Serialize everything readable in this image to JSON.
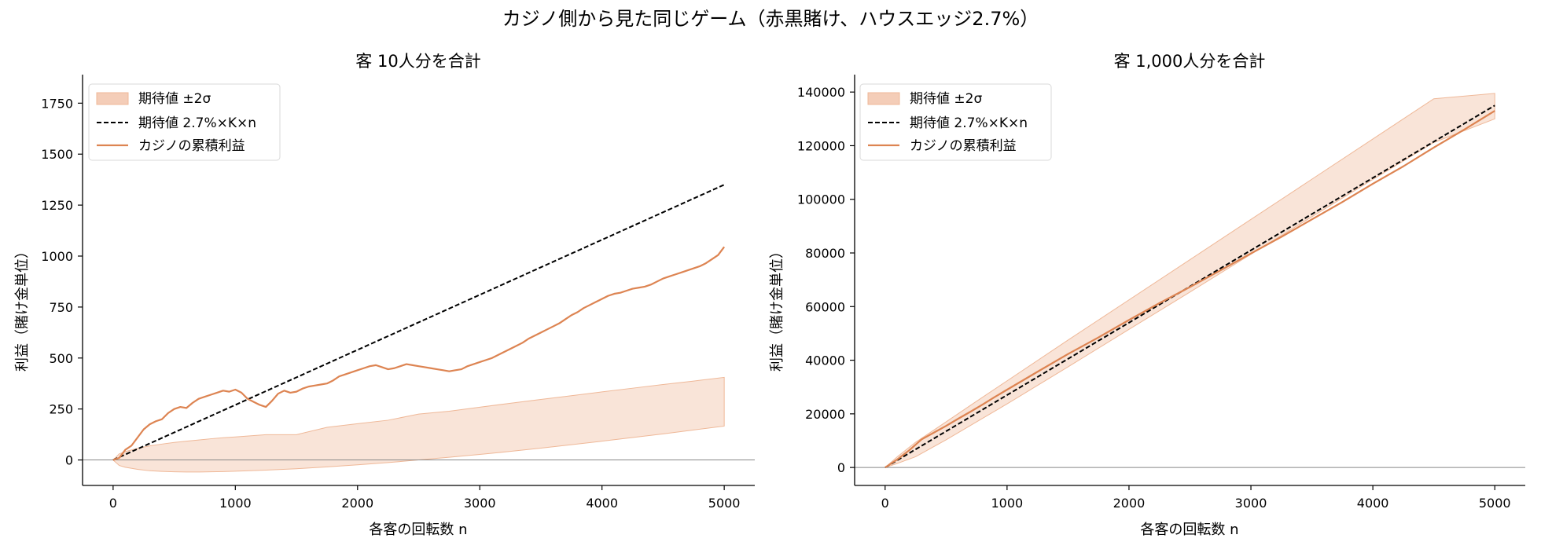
{
  "figure": {
    "suptitle": "カジノ側から見た同じゲーム（赤黒賭け、ハウスエッジ2.7%）"
  },
  "colors": {
    "band_fill": "#f4cdb8",
    "band_stroke": "#efb898",
    "profit_line": "#dd8452",
    "expected_line": "#000000",
    "zero_line": "#888888",
    "axis": "#000000",
    "legend_border": "#d9d9d9"
  },
  "chart_data": [
    {
      "type": "line",
      "title": "客 10人分を合計",
      "xlabel": "各客の回転数 n",
      "ylabel": "利益（賭け金単位）",
      "xlim": [
        -250,
        5250
      ],
      "ylim": [
        -125,
        1890
      ],
      "xticks": [
        0,
        1000,
        2000,
        3000,
        4000,
        5000
      ],
      "xtick_labels": [
        "0",
        "1000",
        "2000",
        "3000",
        "4000",
        "5000"
      ],
      "yticks": [
        0,
        250,
        500,
        750,
        1000,
        1250,
        1500,
        1750
      ],
      "ytick_labels": [
        "0",
        "250",
        "500",
        "750",
        "1000",
        "1250",
        "1500",
        "1750"
      ],
      "grid": false,
      "zero_line": true,
      "legend_position": "top-left",
      "legend": [
        "期待値 ±2σ",
        "期待値 2.7%×K×n",
        "カジノの累積利益"
      ],
      "band": {
        "name": "期待値 ±2σ",
        "x": [
          0,
          50,
          100,
          200,
          300,
          400,
          500,
          600,
          700,
          800,
          900,
          1000,
          1250,
          1500,
          1750,
          2000,
          2250,
          2500,
          2750,
          3000,
          3250,
          3500,
          3750,
          4000,
          4250,
          4500,
          4750,
          5000
        ],
        "lower": [
          0,
          -27,
          -36,
          -46,
          -53,
          -56,
          -58,
          -59,
          -59,
          -58,
          -57,
          -55,
          -50,
          -43,
          -34,
          -24,
          -13,
          0,
          13,
          27,
          42,
          58,
          75,
          92,
          110,
          128,
          147,
          166
        ],
        "upper": [
          0,
          30,
          41,
          57,
          69,
          78,
          86,
          92,
          98,
          104,
          109,
          113,
          124,
          124,
          160,
          178,
          195,
          225,
          239,
          259,
          278,
          297,
          315,
          334,
          352,
          370,
          387,
          405
        ]
      },
      "expected": {
        "name": "期待値 2.7%×K×n",
        "x": [
          0,
          5000
        ],
        "y": [
          0,
          1350
        ]
      },
      "series": [
        {
          "name": "カジノの累積利益",
          "x": [
            0,
            50,
            100,
            150,
            200,
            250,
            300,
            350,
            400,
            450,
            500,
            550,
            600,
            650,
            700,
            750,
            800,
            850,
            900,
            950,
            1000,
            1050,
            1100,
            1150,
            1200,
            1250,
            1300,
            1350,
            1400,
            1450,
            1500,
            1550,
            1600,
            1650,
            1700,
            1750,
            1800,
            1850,
            1900,
            1950,
            2000,
            2050,
            2100,
            2150,
            2200,
            2250,
            2300,
            2350,
            2400,
            2450,
            2500,
            2550,
            2600,
            2650,
            2700,
            2750,
            2800,
            2850,
            2900,
            2950,
            3000,
            3050,
            3100,
            3150,
            3200,
            3250,
            3300,
            3350,
            3400,
            3450,
            3500,
            3550,
            3600,
            3650,
            3700,
            3750,
            3800,
            3850,
            3900,
            3950,
            4000,
            4050,
            4100,
            4150,
            4200,
            4250,
            4300,
            4350,
            4400,
            4450,
            4500,
            4550,
            4600,
            4650,
            4700,
            4750,
            4800,
            4850,
            4900,
            4950,
            5000
          ],
          "y": [
            0,
            10,
            50,
            70,
            110,
            150,
            175,
            190,
            200,
            230,
            250,
            260,
            255,
            280,
            300,
            310,
            320,
            330,
            340,
            335,
            345,
            330,
            300,
            285,
            270,
            260,
            290,
            325,
            340,
            330,
            335,
            350,
            360,
            365,
            370,
            375,
            390,
            410,
            420,
            430,
            440,
            450,
            460,
            465,
            455,
            445,
            450,
            460,
            470,
            465,
            460,
            455,
            450,
            445,
            440,
            435,
            440,
            445,
            460,
            470,
            480,
            490,
            500,
            515,
            530,
            545,
            560,
            575,
            595,
            610,
            625,
            640,
            655,
            670,
            690,
            710,
            725,
            745,
            760,
            775,
            790,
            805,
            815,
            820,
            830,
            840,
            845,
            850,
            860,
            875,
            890,
            900,
            910,
            920,
            930,
            940,
            950,
            965,
            985,
            1005,
            1045
          ]
        }
      ]
    },
    {
      "type": "line",
      "title": "客 1,000人分を合計",
      "xlabel": "各客の回転数 n",
      "ylabel": "利益（賭け金単位）",
      "xlim": [
        -250,
        5250
      ],
      "ylim": [
        -6700,
        146500
      ],
      "xticks": [
        0,
        1000,
        2000,
        3000,
        4000,
        5000
      ],
      "xtick_labels": [
        "0",
        "1000",
        "2000",
        "3000",
        "4000",
        "5000"
      ],
      "yticks": [
        0,
        20000,
        40000,
        60000,
        80000,
        100000,
        120000,
        140000
      ],
      "ytick_labels": [
        "0",
        "20000",
        "40000",
        "60000",
        "80000",
        "100000",
        "120000",
        "140000"
      ],
      "grid": false,
      "zero_line": true,
      "legend_position": "top-left",
      "legend": [
        "期待値 ±2σ",
        "期待値 2.7%×K×n",
        "カジノの累積利益"
      ],
      "band": {
        "name": "期待値 ±2σ",
        "x": [
          0,
          100,
          250,
          500,
          750,
          1000,
          1500,
          2000,
          2500,
          3000,
          3500,
          4000,
          4500,
          5000
        ],
        "lower": [
          0,
          1500,
          4000,
          10300,
          17000,
          23700,
          37500,
          51500,
          65400,
          79500,
          93500,
          107400,
          121200,
          130000
        ],
        "upper": [
          0,
          4000,
          9400,
          17000,
          24700,
          32300,
          47500,
          62500,
          77500,
          92500,
          107500,
          122500,
          137500,
          139500
        ]
      },
      "expected": {
        "name": "期待値 2.7%×K×n",
        "x": [
          0,
          5000
        ],
        "y": [
          0,
          135000
        ]
      },
      "series": [
        {
          "name": "カジノの累積利益",
          "x": [
            0,
            100,
            200,
            300,
            400,
            500,
            600,
            700,
            800,
            900,
            1000,
            1250,
            1500,
            1750,
            2000,
            2250,
            2500,
            2750,
            3000,
            3250,
            3500,
            3750,
            4000,
            4250,
            4500,
            4750,
            5000
          ],
          "y": [
            0,
            3000,
            6500,
            10500,
            13000,
            15500,
            18200,
            20800,
            23500,
            26300,
            29000,
            35700,
            42300,
            48500,
            55000,
            61300,
            67300,
            73500,
            79800,
            86000,
            92500,
            99000,
            105800,
            112300,
            119300,
            126000,
            133000
          ]
        }
      ]
    }
  ]
}
